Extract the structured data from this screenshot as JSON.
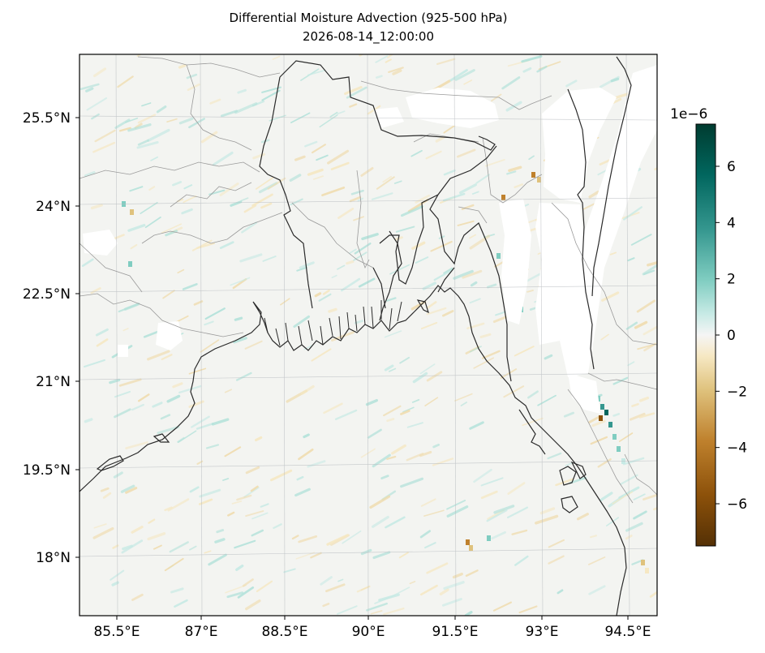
{
  "title": "Differential Moisture Advection (925-500 hPa)",
  "subtitle": "2026-08-14_12:00:00",
  "map": {
    "lat_labels": [
      "25.5°N",
      "24°N",
      "22.5°N",
      "21°N",
      "19.5°N",
      "18°N"
    ],
    "lon_labels": [
      "85.5°E",
      "87°E",
      "88.5°E",
      "90°E",
      "91.5°E",
      "93°E",
      "94.5°E"
    ],
    "gridlines": true
  },
  "colorbar": {
    "multiplier": "1e−6",
    "ticks": [
      {
        "value": 6,
        "label": "6"
      },
      {
        "value": 4,
        "label": "4"
      },
      {
        "value": 2,
        "label": "2"
      },
      {
        "value": 0,
        "label": "0"
      },
      {
        "value": -2,
        "label": "−2"
      },
      {
        "value": -4,
        "label": "−4"
      },
      {
        "value": -6,
        "label": "−6"
      }
    ],
    "range": [
      -7.5,
      7.5
    ],
    "colormap": "BrBG",
    "colors": {
      "low": "#543005",
      "mid": "#f5f5f5",
      "high": "#003c30"
    }
  },
  "colors": {
    "coastline": "#222222",
    "borders": "#999999",
    "missing": "#ffffff",
    "background_field": "#f3f4f1"
  }
}
